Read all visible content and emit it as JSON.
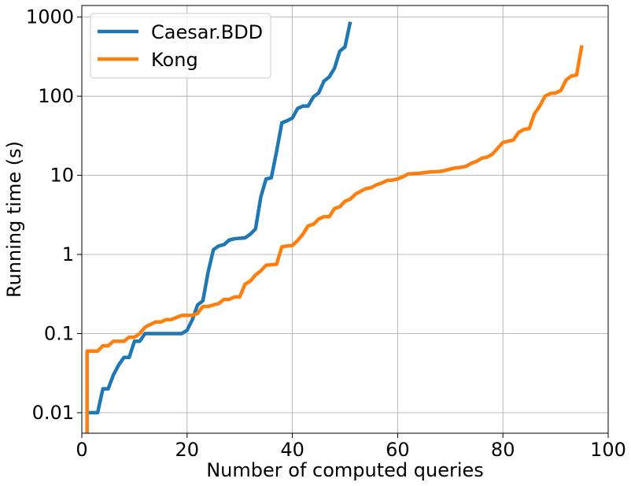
{
  "chart_data": {
    "type": "line",
    "xlabel": "Number of computed queries",
    "ylabel": "Running time (s)",
    "xlim": [
      0,
      100
    ],
    "ylim": [
      0.0055,
      1400
    ],
    "yscale": "log",
    "grid": true,
    "legend_position": "top-left",
    "x_ticks": [
      0,
      20,
      40,
      60,
      80,
      100
    ],
    "x_tick_labels": [
      "0",
      "20",
      "40",
      "60",
      "80",
      "100"
    ],
    "y_ticks": [
      0.01,
      0.1,
      1,
      10,
      100,
      1000
    ],
    "y_tick_labels": [
      "0.01",
      "0.1",
      "1",
      "10",
      "100",
      "1000"
    ],
    "series": [
      {
        "name": "Caesar.BDD",
        "color": "#1f77b4",
        "x": [
          1,
          2,
          3,
          4,
          5,
          6,
          7,
          8,
          9,
          10,
          11,
          12,
          13,
          14,
          15,
          16,
          17,
          18,
          19,
          20,
          21,
          22,
          23,
          24,
          25,
          26,
          27,
          28,
          29,
          30,
          31,
          32,
          33,
          34,
          35,
          36,
          37,
          38,
          39,
          40,
          41,
          42,
          43,
          44,
          45,
          46,
          47,
          48,
          49,
          50,
          51
        ],
        "y": [
          0.01,
          0.01,
          0.01,
          0.02,
          0.02,
          0.03,
          0.04,
          0.05,
          0.05,
          0.08,
          0.08,
          0.1,
          0.1,
          0.1,
          0.1,
          0.1,
          0.1,
          0.1,
          0.1,
          0.11,
          0.15,
          0.23,
          0.26,
          0.6,
          1.15,
          1.28,
          1.33,
          1.52,
          1.58,
          1.6,
          1.62,
          1.8,
          2.1,
          5.3,
          9.0,
          9.3,
          20,
          46,
          49,
          53,
          70,
          75,
          75,
          98,
          110,
          155,
          175,
          225,
          370,
          420,
          870
        ]
      },
      {
        "name": "Kong",
        "color": "#ff7f0e",
        "x": [
          1,
          1,
          2,
          3,
          4,
          5,
          6,
          7,
          8,
          9,
          10,
          11,
          12,
          13,
          14,
          15,
          16,
          17,
          18,
          19,
          20,
          21,
          22,
          23,
          24,
          25,
          26,
          27,
          28,
          29,
          30,
          31,
          32,
          33,
          34,
          35,
          36,
          37,
          38,
          39,
          40,
          41,
          42,
          43,
          44,
          45,
          46,
          47,
          48,
          49,
          50,
          51,
          52,
          53,
          54,
          55,
          56,
          57,
          58,
          59,
          60,
          61,
          62,
          63,
          64,
          65,
          66,
          67,
          68,
          69,
          70,
          71,
          72,
          73,
          74,
          75,
          76,
          77,
          78,
          79,
          80,
          81,
          82,
          83,
          84,
          85,
          86,
          87,
          88,
          89,
          90,
          91,
          92,
          93,
          94,
          95
        ],
        "y": [
          0.005,
          0.06,
          0.06,
          0.06,
          0.07,
          0.07,
          0.08,
          0.08,
          0.08,
          0.09,
          0.09,
          0.1,
          0.12,
          0.13,
          0.14,
          0.14,
          0.15,
          0.15,
          0.16,
          0.17,
          0.17,
          0.17,
          0.18,
          0.22,
          0.22,
          0.23,
          0.24,
          0.27,
          0.27,
          0.29,
          0.29,
          0.42,
          0.46,
          0.55,
          0.62,
          0.73,
          0.74,
          0.75,
          1.25,
          1.28,
          1.3,
          1.5,
          1.8,
          2.3,
          2.4,
          2.8,
          3.0,
          3.0,
          3.8,
          4.0,
          4.7,
          5.0,
          5.8,
          6.3,
          6.8,
          7.0,
          7.6,
          8.0,
          8.6,
          8.7,
          9.0,
          9.6,
          10.4,
          10.5,
          10.6,
          10.8,
          11.0,
          11.1,
          11.2,
          11.5,
          12.0,
          12.4,
          12.6,
          13.0,
          14.2,
          15.0,
          16.5,
          17.0,
          18.5,
          22,
          26,
          27,
          28,
          35,
          38,
          39,
          60,
          75,
          100,
          108,
          110,
          118,
          160,
          180,
          185,
          440
        ]
      }
    ]
  }
}
